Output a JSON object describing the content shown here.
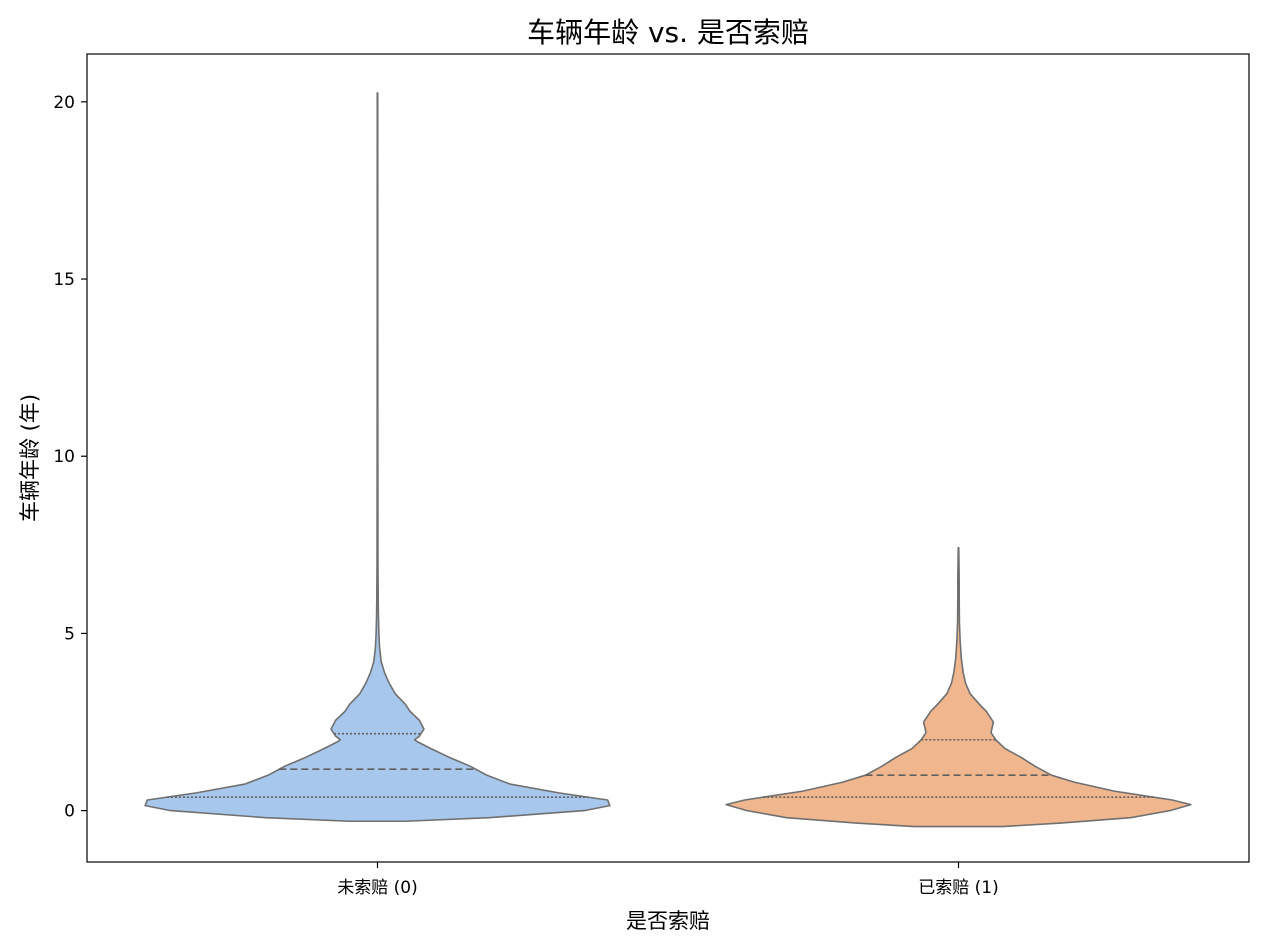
{
  "chart_data": {
    "type": "violin",
    "title": "车辆年龄 vs. 是否索赔",
    "xlabel": "是否索赔",
    "ylabel": "车辆年龄 (年)",
    "categories": [
      "未索赔 (0)",
      "已索赔 (1)"
    ],
    "ylim": [
      -1.45,
      21.35
    ],
    "yticks": [
      0,
      5,
      10,
      15,
      20
    ],
    "ytick_labels": [
      "0",
      "5",
      "10",
      "15",
      "20"
    ],
    "inner": "quartile",
    "grid": false,
    "colors": {
      "fill": [
        "#a8c7ec",
        "#f0b68e"
      ],
      "edge": "#707070",
      "quartile_line": "#606060"
    },
    "violins": [
      {
        "category": "未索赔 (0)",
        "quartiles": {
          "q1": 0.38,
          "median": 1.17,
          "q3": 2.17
        },
        "profile": [
          [
            -0.3,
            0.12
          ],
          [
            -0.2,
            0.48
          ],
          [
            0.0,
            0.89
          ],
          [
            0.14,
            1.0
          ],
          [
            0.3,
            0.99
          ],
          [
            0.5,
            0.78
          ],
          [
            0.75,
            0.57
          ],
          [
            1.0,
            0.47
          ],
          [
            1.25,
            0.4
          ],
          [
            1.5,
            0.31
          ],
          [
            1.75,
            0.23
          ],
          [
            1.95,
            0.17
          ],
          [
            2.0,
            0.16
          ],
          [
            2.1,
            0.18
          ],
          [
            2.3,
            0.2
          ],
          [
            2.55,
            0.18
          ],
          [
            2.8,
            0.14
          ],
          [
            3.0,
            0.12
          ],
          [
            3.3,
            0.076
          ],
          [
            3.6,
            0.05
          ],
          [
            3.9,
            0.03
          ],
          [
            4.2,
            0.016
          ],
          [
            4.6,
            0.009
          ],
          [
            5.0,
            0.006
          ],
          [
            5.5,
            0.004
          ],
          [
            6.0,
            0.003
          ],
          [
            7.0,
            0.002
          ],
          [
            10.0,
            0.0015
          ],
          [
            15.0,
            0.0012
          ],
          [
            20.25,
            0.001
          ]
        ]
      },
      {
        "category": "已索赔 (1)",
        "quartiles": {
          "q1": 0.38,
          "median": 1.0,
          "q3": 2.0
        },
        "profile": [
          [
            -0.45,
            0.19
          ],
          [
            -0.35,
            0.44
          ],
          [
            -0.2,
            0.74
          ],
          [
            0.0,
            0.91
          ],
          [
            0.17,
            1.0
          ],
          [
            0.3,
            0.92
          ],
          [
            0.55,
            0.67
          ],
          [
            0.8,
            0.5
          ],
          [
            1.0,
            0.4
          ],
          [
            1.25,
            0.33
          ],
          [
            1.5,
            0.27
          ],
          [
            1.75,
            0.2
          ],
          [
            2.0,
            0.16
          ],
          [
            2.2,
            0.14
          ],
          [
            2.5,
            0.15
          ],
          [
            2.8,
            0.12
          ],
          [
            3.0,
            0.09
          ],
          [
            3.3,
            0.05
          ],
          [
            3.6,
            0.03
          ],
          [
            3.9,
            0.02
          ],
          [
            4.3,
            0.012
          ],
          [
            4.8,
            0.007
          ],
          [
            5.3,
            0.004
          ],
          [
            6.0,
            0.003
          ],
          [
            6.5,
            0.003
          ],
          [
            7.0,
            0.002
          ],
          [
            7.42,
            0.001
          ]
        ]
      }
    ]
  }
}
